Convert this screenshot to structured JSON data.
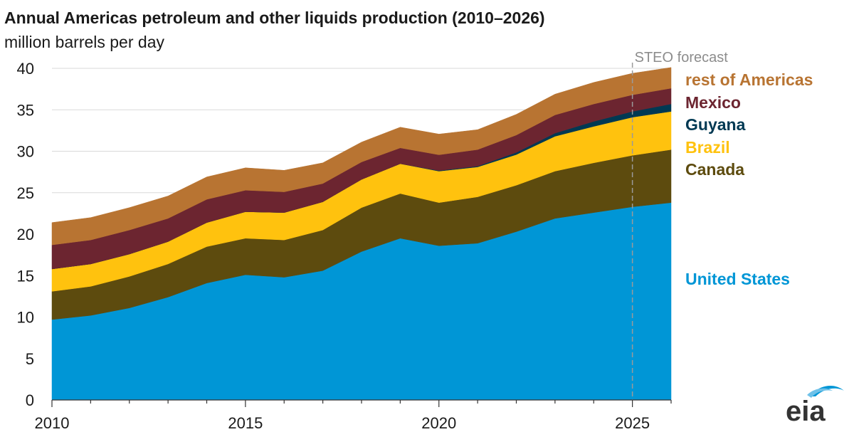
{
  "title": "Annual Americas petroleum and other liquids production (2010–2026)",
  "subtitle": "million barrels per day",
  "forecast_label": "STEO forecast",
  "logo_text": "eia",
  "chart_data": {
    "type": "area",
    "stacked": true,
    "x": [
      2010,
      2011,
      2012,
      2013,
      2014,
      2015,
      2016,
      2017,
      2018,
      2019,
      2020,
      2021,
      2022,
      2023,
      2024,
      2025,
      2026
    ],
    "xticks": [
      2010,
      2015,
      2020,
      2025
    ],
    "yticks": [
      0,
      5,
      10,
      15,
      20,
      25,
      30,
      35,
      40
    ],
    "ylim": [
      0,
      40
    ],
    "xlim": [
      2010,
      2026
    ],
    "forecast_start": 2025,
    "grid": "horizontal",
    "legend_position": "right",
    "series": [
      {
        "name": "United States",
        "color": "#0096D6",
        "values": [
          9.7,
          10.2,
          11.1,
          12.4,
          14.1,
          15.1,
          14.8,
          15.6,
          17.9,
          19.5,
          18.6,
          18.9,
          20.3,
          21.9,
          22.6,
          23.3,
          23.8
        ]
      },
      {
        "name": "Canada",
        "color": "#5D4B0E",
        "values": [
          3.4,
          3.5,
          3.8,
          4.0,
          4.4,
          4.4,
          4.5,
          4.9,
          5.3,
          5.4,
          5.2,
          5.6,
          5.6,
          5.7,
          6.0,
          6.2,
          6.4
        ]
      },
      {
        "name": "Brazil",
        "color": "#FFC20E",
        "values": [
          2.7,
          2.7,
          2.7,
          2.7,
          2.9,
          3.2,
          3.3,
          3.4,
          3.4,
          3.6,
          3.8,
          3.6,
          3.7,
          4.2,
          4.4,
          4.6,
          4.6
        ]
      },
      {
        "name": "Guyana",
        "color": "#003953",
        "values": [
          0,
          0,
          0,
          0,
          0,
          0,
          0,
          0,
          0,
          0,
          0.07,
          0.1,
          0.25,
          0.38,
          0.6,
          0.7,
          0.9
        ]
      },
      {
        "name": "Mexico",
        "color": "#6C2530",
        "values": [
          2.9,
          2.9,
          2.9,
          2.8,
          2.8,
          2.6,
          2.5,
          2.2,
          2.1,
          1.9,
          1.9,
          2.0,
          2.1,
          2.2,
          2.1,
          2.0,
          1.9
        ]
      },
      {
        "name": "rest of Americas",
        "color": "#B87432",
        "values": [
          2.7,
          2.7,
          2.7,
          2.7,
          2.7,
          2.7,
          2.6,
          2.5,
          2.4,
          2.5,
          2.5,
          2.4,
          2.5,
          2.5,
          2.6,
          2.6,
          2.5
        ]
      }
    ]
  }
}
